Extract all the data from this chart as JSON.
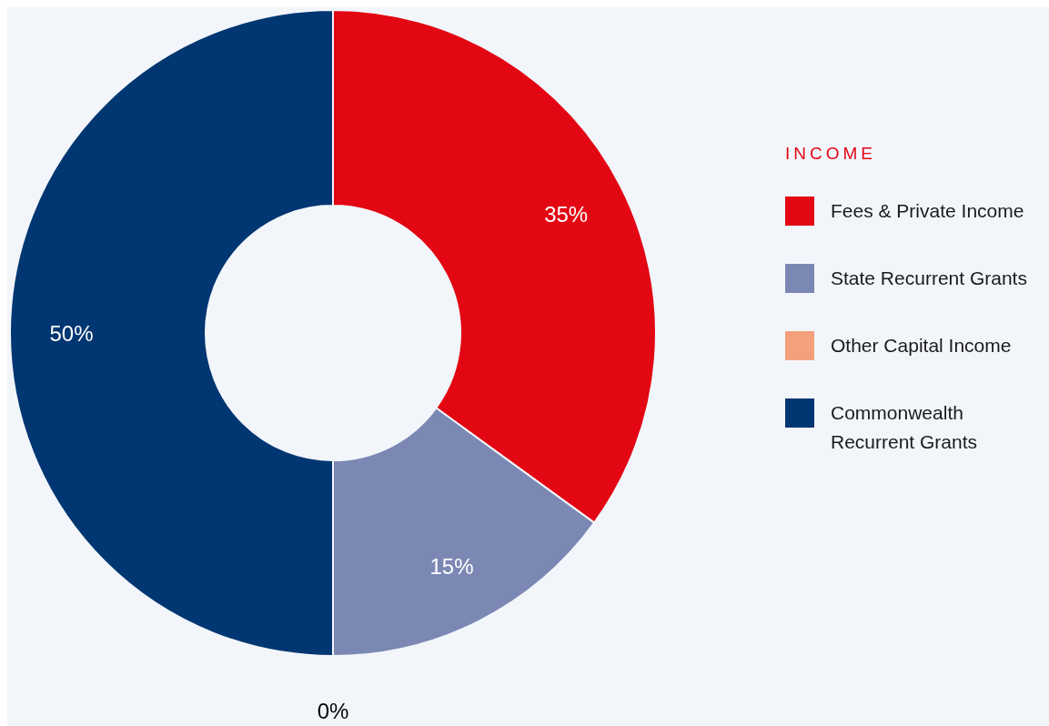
{
  "chart_data": {
    "type": "donut",
    "legend_title": "INCOME",
    "categories": [
      "Fees & Private Income",
      "State Recurrent Grants",
      "Other Capital Income",
      "Commonwealth Recurrent Grants"
    ],
    "values": [
      35,
      15,
      0,
      50
    ],
    "colors": [
      "#e30613",
      "#7b88b4",
      "#f4a07c",
      "#003671"
    ],
    "value_labels": [
      "35%",
      "15%",
      "0%",
      "50%"
    ],
    "legend": "right"
  }
}
